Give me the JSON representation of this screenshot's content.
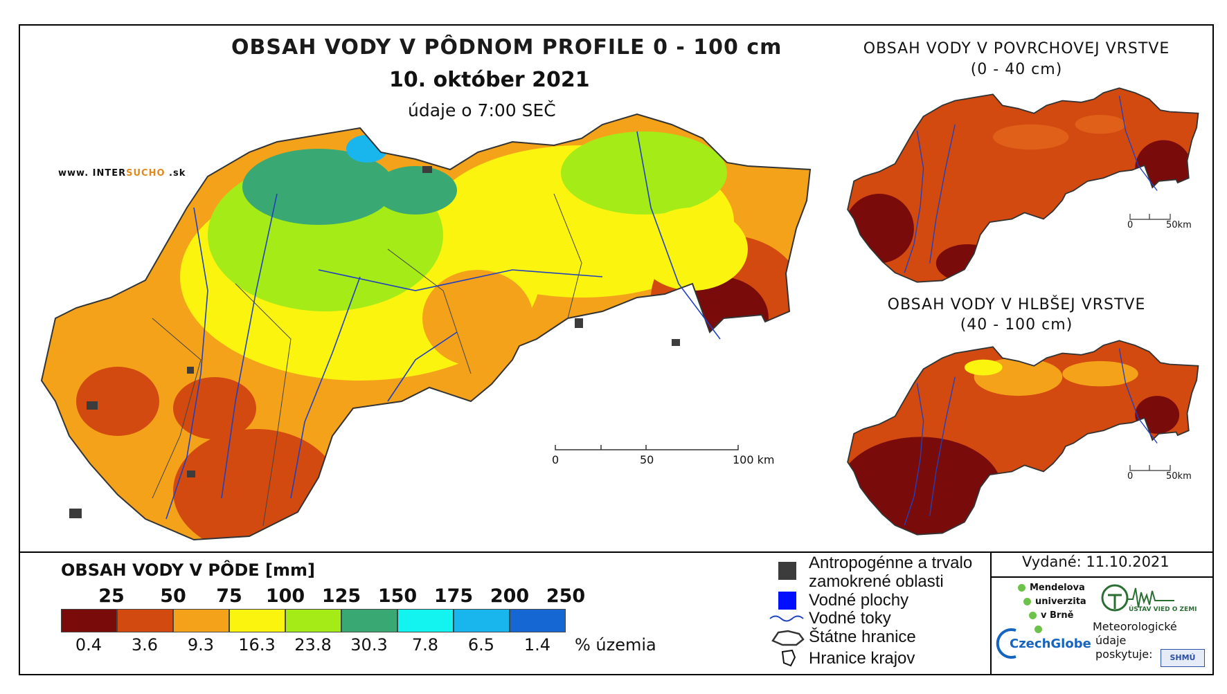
{
  "title": "OBSAH VODY V PÔDNOM PROFILE 0 - 100 cm",
  "date": "10. október 2021",
  "time_note": "údaje o 7:00 SEČ",
  "watermark": {
    "prefix": "www. INTER",
    "accent": "SUCHO",
    "suffix": " .sk"
  },
  "surface_title": "OBSAH VODY V POVRCHOVEJ VRSTVE",
  "surface_range": "(0 - 40 cm)",
  "deep_title": "OBSAH VODY V HLBŠEJ VRSTVE",
  "deep_range": "(40 - 100 cm)",
  "scale_main": {
    "l0": "0",
    "l1": "50",
    "l2": "100 km"
  },
  "scale_small": {
    "l0": "0",
    "l1": "50km"
  },
  "legend": {
    "title": "OBSAH VODY V PÔDE [mm]",
    "thresholds": [
      "25",
      "50",
      "75",
      "100",
      "125",
      "150",
      "175",
      "200",
      "250"
    ],
    "colors": [
      "#7a0b0b",
      "#d24a0f",
      "#f5a21b",
      "#fbf40e",
      "#a4eb17",
      "#3aa872",
      "#13f4f0",
      "#19b6ee",
      "#1567d4"
    ],
    "percents": [
      "0.4",
      "3.6",
      "9.3",
      "16.3",
      "23.8",
      "30.3",
      "7.8",
      "6.5",
      "1.4"
    ],
    "percent_label": "% územia"
  },
  "symbols": {
    "anthro_line1": "Antropogénne a trvalo",
    "anthro_line2": "zamokrené oblasti",
    "water_bodies": "Vodné plochy",
    "water_streams": "Vodné toky",
    "state_border": "Štátne hranice",
    "region_border": "Hranice krajov"
  },
  "published": "Vydané: 11.10.2021",
  "logos": {
    "mendel1": "Mendelova",
    "mendel2": "univerzita",
    "mendel3": "v Brně",
    "czechglobe": "CzechGlobe",
    "uvgz": "ÚSTAV VIED O ZEMI",
    "meteo1": "Meteorologické",
    "meteo2": "údaje",
    "meteo3": "poskytuje:",
    "shmu": "SHMÚ"
  }
}
